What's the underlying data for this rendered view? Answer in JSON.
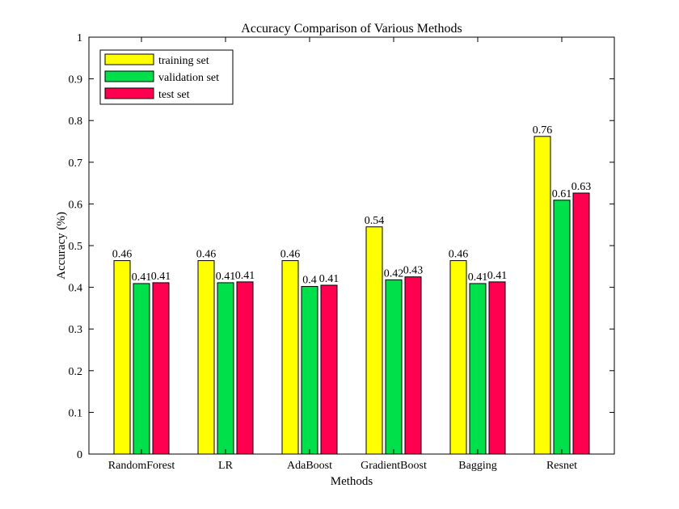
{
  "chart_data": {
    "type": "bar",
    "title": "Accuracy Comparison of Various Methods",
    "xlabel": "Methods",
    "ylabel": "Accuracy (%)",
    "categories": [
      "RandomForest",
      "LR",
      "AdaBoost",
      "GradientBoost",
      "Bagging",
      "Resnet"
    ],
    "ylim": [
      0,
      1
    ],
    "yticks": [
      "0",
      "0.1",
      "0.2",
      "0.3",
      "0.4",
      "0.5",
      "0.6",
      "0.7",
      "0.8",
      "0.9",
      "1"
    ],
    "grid": false,
    "legend_position": "top-left",
    "series": [
      {
        "name": "training set",
        "color": "#ffff00",
        "values": [
          0.464,
          0.464,
          0.464,
          0.545,
          0.464,
          0.762
        ],
        "labels": [
          "0.46",
          "0.46",
          "0.46",
          "0.54",
          "0.46",
          "0.76"
        ]
      },
      {
        "name": "validation set",
        "color": "#00e04b",
        "values": [
          0.409,
          0.411,
          0.402,
          0.418,
          0.409,
          0.609
        ],
        "labels": [
          "0.41",
          "0.41",
          "0.4",
          "0.42",
          "0.41",
          "0.61"
        ]
      },
      {
        "name": "test set",
        "color": "#ff0050",
        "values": [
          0.411,
          0.413,
          0.405,
          0.425,
          0.413,
          0.626
        ],
        "labels": [
          "0.41",
          "0.41",
          "0.41",
          "0.43",
          "0.41",
          "0.63"
        ]
      }
    ]
  }
}
